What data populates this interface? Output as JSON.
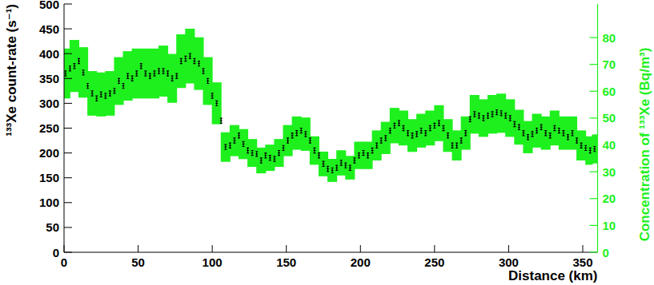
{
  "chart_data": {
    "type": "scatter",
    "xlabel": "Distance (km)",
    "ylabel": "¹³³Xe count-rate (s⁻¹)",
    "y2label": "Concentration of ¹³³Xe (Bq/m³)",
    "xlim": [
      0,
      360
    ],
    "xticks": [
      0,
      50,
      100,
      150,
      200,
      250,
      300,
      350
    ],
    "ylim": [
      0,
      500
    ],
    "yticks": [
      0,
      50,
      100,
      150,
      200,
      250,
      300,
      350,
      400,
      450,
      500
    ],
    "y2lim": [
      0,
      92.5
    ],
    "y2ticks": [
      0,
      10,
      20,
      30,
      40,
      50,
      60,
      70,
      80
    ],
    "series": [
      {
        "type": "scatter",
        "color": "#000000",
        "marker": "errorbar",
        "x": [
          1,
          4,
          7,
          10,
          13,
          16,
          19,
          22,
          25,
          28,
          31,
          34,
          37,
          40,
          43,
          46,
          49,
          52,
          55,
          58,
          61,
          64,
          67,
          70,
          73,
          76,
          79,
          82,
          85,
          88,
          91,
          94,
          97,
          100,
          103,
          106,
          109,
          112,
          115,
          118,
          121,
          124,
          127,
          130,
          133,
          136,
          139,
          142,
          145,
          148,
          151,
          154,
          157,
          160,
          163,
          166,
          169,
          172,
          175,
          178,
          181,
          184,
          187,
          190,
          193,
          196,
          199,
          202,
          205,
          208,
          211,
          214,
          217,
          220,
          223,
          226,
          229,
          232,
          235,
          238,
          241,
          244,
          247,
          250,
          253,
          256,
          259,
          262,
          265,
          268,
          271,
          274,
          277,
          280,
          283,
          286,
          289,
          292,
          295,
          298,
          301,
          304,
          307,
          310,
          313,
          316,
          319,
          322,
          325,
          328,
          331,
          334,
          337,
          340,
          343,
          346,
          349,
          352,
          355,
          358
        ],
        "values": [
          360,
          370,
          375,
          385,
          362,
          335,
          320,
          310,
          318,
          315,
          320,
          325,
          345,
          335,
          355,
          350,
          360,
          375,
          360,
          355,
          360,
          365,
          365,
          360,
          350,
          355,
          385,
          390,
          395,
          385,
          380,
          365,
          345,
          315,
          300,
          265,
          212,
          215,
          225,
          235,
          218,
          205,
          200,
          198,
          185,
          195,
          190,
          188,
          200,
          210,
          225,
          235,
          240,
          245,
          238,
          225,
          205,
          195,
          178,
          168,
          165,
          170,
          180,
          175,
          170,
          185,
          195,
          200,
          195,
          205,
          215,
          225,
          230,
          245,
          255,
          260,
          250,
          240,
          235,
          238,
          245,
          240,
          250,
          255,
          260,
          250,
          235,
          215,
          215,
          225,
          240,
          268,
          278,
          275,
          270,
          275,
          278,
          282,
          280,
          275,
          270,
          258,
          252,
          240,
          232,
          238,
          245,
          252,
          240,
          235,
          250,
          245,
          240,
          232,
          240,
          225,
          215,
          210,
          205,
          208
        ],
        "error": [
          5,
          5,
          5,
          5,
          5,
          5,
          5,
          5,
          5,
          5,
          5,
          5,
          5,
          5,
          5,
          5,
          5,
          5,
          5,
          5,
          5,
          5,
          5,
          5,
          5,
          5,
          5,
          5,
          5,
          5,
          5,
          5,
          5,
          5,
          5,
          5,
          5,
          5,
          5,
          5,
          5,
          5,
          5,
          5,
          5,
          5,
          5,
          5,
          5,
          5,
          5,
          5,
          5,
          5,
          5,
          5,
          5,
          5,
          5,
          5,
          5,
          5,
          5,
          5,
          5,
          5,
          5,
          5,
          5,
          5,
          5,
          5,
          5,
          5,
          5,
          5,
          5,
          5,
          5,
          5,
          5,
          5,
          5,
          5,
          5,
          5,
          5,
          5,
          5,
          5,
          5,
          5,
          5,
          5,
          5,
          5,
          5,
          5,
          5,
          5,
          5,
          5,
          5,
          5,
          5,
          5,
          5,
          5,
          5,
          5,
          5,
          5,
          5,
          5,
          5,
          5,
          5,
          5,
          5,
          5
        ]
      },
      {
        "type": "area",
        "axis": "y2",
        "color": "#1ef01e",
        "x": [
          1,
          7,
          13,
          19,
          25,
          31,
          37,
          43,
          49,
          55,
          61,
          67,
          73,
          79,
          85,
          91,
          97,
          103,
          109,
          115,
          121,
          127,
          133,
          139,
          145,
          151,
          157,
          163,
          169,
          175,
          181,
          187,
          193,
          199,
          205,
          211,
          217,
          223,
          229,
          235,
          241,
          247,
          253,
          259,
          265,
          271,
          277,
          283,
          289,
          295,
          301,
          307,
          313,
          319,
          325,
          331,
          337,
          343,
          349,
          355,
          358
        ],
        "values": [
          66.6,
          69.4,
          67.0,
          59.2,
          58.8,
          59.2,
          63.8,
          65.7,
          66.6,
          66.6,
          66.6,
          67.5,
          64.8,
          71.2,
          73.1,
          70.3,
          63.8,
          55.5,
          39.2,
          41.6,
          40.3,
          37.0,
          34.2,
          35.2,
          37.0,
          41.6,
          44.4,
          44.0,
          37.9,
          32.9,
          30.5,
          33.3,
          31.5,
          36.1,
          36.1,
          39.8,
          42.6,
          47.2,
          46.3,
          43.5,
          45.3,
          46.3,
          48.1,
          43.5,
          39.8,
          44.4,
          51.4,
          50.0,
          51.4,
          51.8,
          50.0,
          46.6,
          42.9,
          45.3,
          44.4,
          46.3,
          44.4,
          44.4,
          39.8,
          37.9,
          38.5
        ],
        "error": [
          9.3,
          9.7,
          9.4,
          8.3,
          8.2,
          8.3,
          8.9,
          9.2,
          9.3,
          9.3,
          9.3,
          9.5,
          9.1,
          10.0,
          10.2,
          9.8,
          8.9,
          7.8,
          5.5,
          5.8,
          5.6,
          5.2,
          4.8,
          4.9,
          5.2,
          5.8,
          6.2,
          6.2,
          5.3,
          4.6,
          4.3,
          4.7,
          4.4,
          5.1,
          5.1,
          5.6,
          6.0,
          6.6,
          6.5,
          6.1,
          6.3,
          6.5,
          6.7,
          6.1,
          5.6,
          6.2,
          7.2,
          7.0,
          7.2,
          7.3,
          7.0,
          6.5,
          6.0,
          6.3,
          6.2,
          6.5,
          6.2,
          6.2,
          5.6,
          5.3,
          5.4
        ]
      }
    ]
  }
}
